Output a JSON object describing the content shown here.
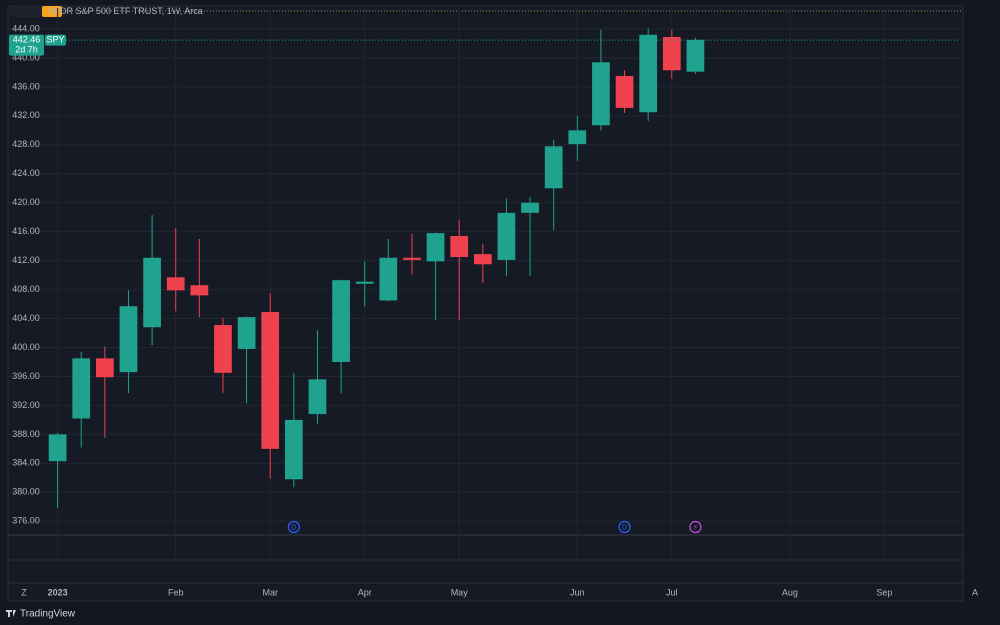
{
  "chart_data": {
    "type": "candlestick",
    "title": "SPDR S&P 500 ETF TRUST, 1W, Arca",
    "symbol": "SPY",
    "last_price": 442.46,
    "countdown": "2d 7h",
    "up_color": "#1fa38f",
    "down_color": "#f0414f",
    "grid": true,
    "x": [
      0,
      1,
      2,
      3,
      4,
      5,
      6,
      7,
      8,
      9,
      10,
      11,
      12,
      13,
      14,
      15,
      16,
      17,
      18,
      19,
      20,
      21,
      22,
      23,
      24,
      25,
      26,
      27
    ],
    "open": [
      384.3,
      390.2,
      398.5,
      396.6,
      402.8,
      409.7,
      408.6,
      403.1,
      399.8,
      404.9,
      381.8,
      390.8,
      398.0,
      408.8,
      406.5,
      412.4,
      411.9,
      415.4,
      412.9,
      412.1,
      418.6,
      422.0,
      428.1,
      430.7,
      437.5,
      432.5,
      442.9,
      438.1
    ],
    "high": [
      388.2,
      399.4,
      400.1,
      407.9,
      418.3,
      416.5,
      415.0,
      404.1,
      404.3,
      407.5,
      396.5,
      402.4,
      409.4,
      411.9,
      415.0,
      415.7,
      415.9,
      417.6,
      414.3,
      420.6,
      420.8,
      428.7,
      432.0,
      443.9,
      438.3,
      444.1,
      443.9,
      442.8
    ],
    "low": [
      377.9,
      386.2,
      387.5,
      393.7,
      400.3,
      405.0,
      404.2,
      393.7,
      392.3,
      381.9,
      380.7,
      389.5,
      393.7,
      405.7,
      406.4,
      410.1,
      403.8,
      403.8,
      408.9,
      409.9,
      409.9,
      416.2,
      425.8,
      430.0,
      432.4,
      431.3,
      437.1,
      437.8
    ],
    "close": [
      388.0,
      398.5,
      395.9,
      405.7,
      412.4,
      407.9,
      407.2,
      396.5,
      404.2,
      386.0,
      390.0,
      395.6,
      409.3,
      409.1,
      412.4,
      412.1,
      415.8,
      412.5,
      411.5,
      418.6,
      420.0,
      427.8,
      430.0,
      439.4,
      433.1,
      443.2,
      438.3,
      442.5
    ],
    "xlim": [
      -2.1,
      38.2
    ],
    "xticks": [
      {
        "value": 0,
        "label": "2023"
      },
      {
        "value": 5,
        "label": "Feb"
      },
      {
        "value": 9,
        "label": "Mar"
      },
      {
        "value": 13,
        "label": "Apr"
      },
      {
        "value": 17,
        "label": "May"
      },
      {
        "value": 22,
        "label": "Jun"
      },
      {
        "value": 26,
        "label": "Jul"
      },
      {
        "value": 31,
        "label": "Aug"
      },
      {
        "value": 35,
        "label": "Sep"
      }
    ],
    "ylim": [
      374.1,
      446.9
    ],
    "yticks": [
      {
        "value": 376,
        "label": "376.00"
      },
      {
        "value": 380,
        "label": "380.00"
      },
      {
        "value": 384,
        "label": "384.00"
      },
      {
        "value": 388,
        "label": "388.00"
      },
      {
        "value": 392,
        "label": "392.00"
      },
      {
        "value": 396,
        "label": "396.00"
      },
      {
        "value": 400,
        "label": "400.00"
      },
      {
        "value": 404,
        "label": "404.00"
      },
      {
        "value": 408,
        "label": "408.00"
      },
      {
        "value": 412,
        "label": "412.00"
      },
      {
        "value": 416,
        "label": "416.00"
      },
      {
        "value": 420,
        "label": "420.00"
      },
      {
        "value": 424,
        "label": "424.00"
      },
      {
        "value": 428,
        "label": "428.00"
      },
      {
        "value": 432,
        "label": "432.00"
      },
      {
        "value": 436,
        "label": "436.00"
      },
      {
        "value": 440,
        "label": "440.00"
      },
      {
        "value": 444,
        "label": "444.00"
      }
    ],
    "events": [
      {
        "x": 10,
        "label": "D"
      },
      {
        "x": 24,
        "label": "D"
      },
      {
        "x": 27,
        "label": "⚡"
      }
    ],
    "buttons": [
      "Z",
      "A"
    ],
    "branding": "TradingView"
  }
}
